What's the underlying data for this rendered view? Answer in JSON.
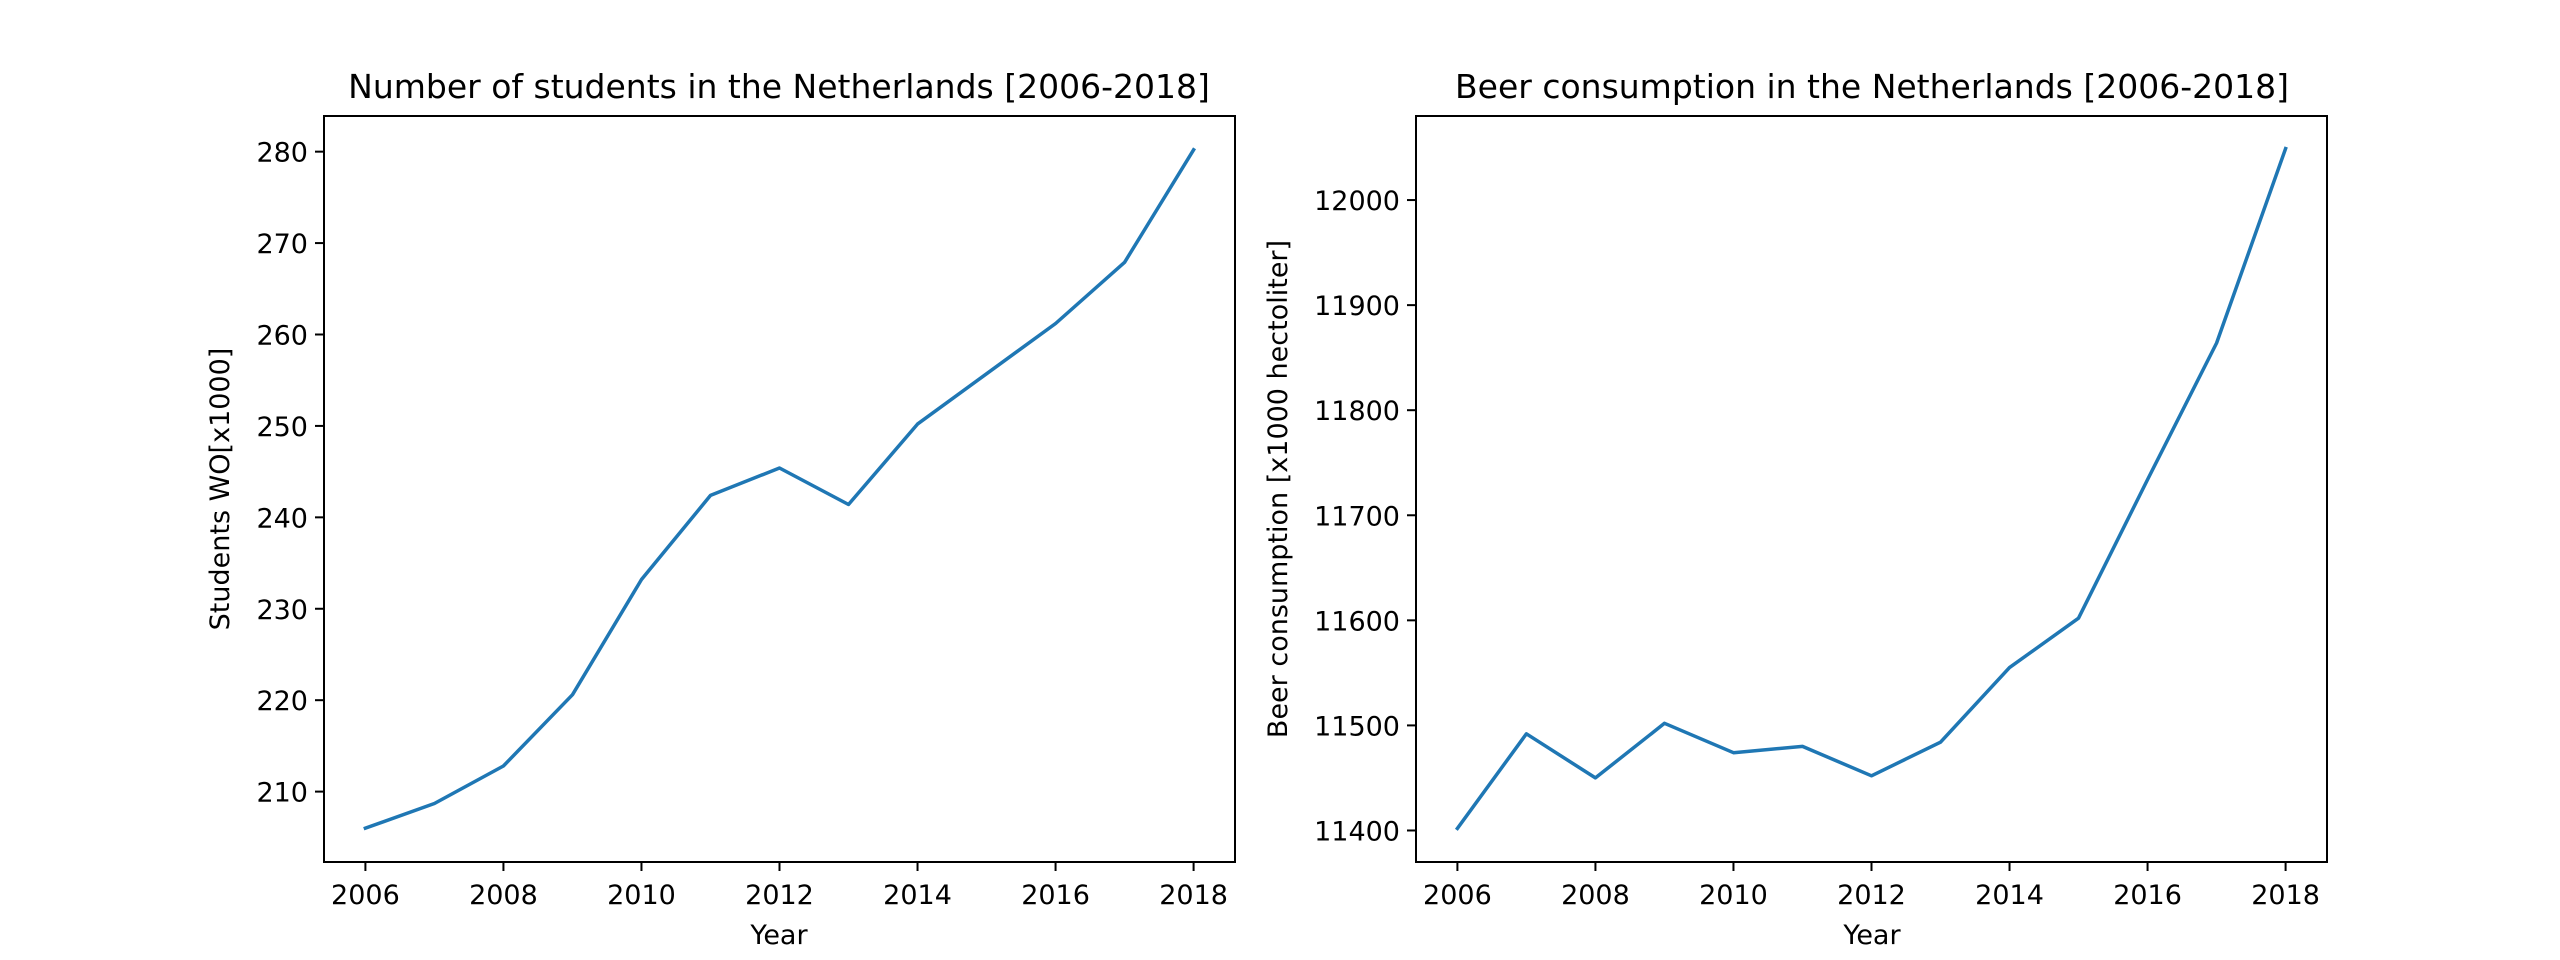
{
  "chart_data": [
    {
      "type": "line",
      "title": "Number of students in the Netherlands [2006-2018]",
      "xlabel": "Year",
      "ylabel": "Students WO[x1000]",
      "x": [
        2006,
        2007,
        2008,
        2009,
        2010,
        2011,
        2012,
        2013,
        2014,
        2015,
        2016,
        2017,
        2018
      ],
      "series": [
        {
          "values": [
            206.0,
            208.7,
            212.8,
            220.6,
            233.2,
            242.4,
            245.4,
            241.4,
            250.2,
            255.7,
            261.2,
            267.9,
            280.2
          ]
        }
      ],
      "xticks": [
        2006,
        2008,
        2010,
        2012,
        2014,
        2016,
        2018
      ],
      "yticks": [
        210,
        220,
        230,
        240,
        250,
        260,
        270,
        280
      ],
      "xlim": [
        2005.4,
        2018.6
      ],
      "ylim": [
        202.3,
        283.9
      ],
      "grid": false
    },
    {
      "type": "line",
      "title": "Beer consumption in the Netherlands [2006-2018]",
      "xlabel": "Year",
      "ylabel": "Beer consumption [x1000 hectoliter]",
      "x": [
        2006,
        2007,
        2008,
        2009,
        2010,
        2011,
        2012,
        2013,
        2014,
        2015,
        2016,
        2017,
        2018
      ],
      "series": [
        {
          "values": [
            11402,
            11492,
            11450,
            11502,
            11474,
            11480,
            11452,
            11484,
            11555,
            11602,
            11734,
            11864,
            12049
          ]
        }
      ],
      "xticks": [
        2006,
        2008,
        2010,
        2012,
        2014,
        2016,
        2018
      ],
      "yticks": [
        11400,
        11500,
        11600,
        11700,
        11800,
        11900,
        12000
      ],
      "xlim": [
        2005.4,
        2018.6
      ],
      "ylim": [
        11370,
        12080
      ],
      "grid": false
    }
  ],
  "colors": {
    "series": "#1f77b4",
    "axes": "#000000",
    "background": "#ffffff"
  }
}
